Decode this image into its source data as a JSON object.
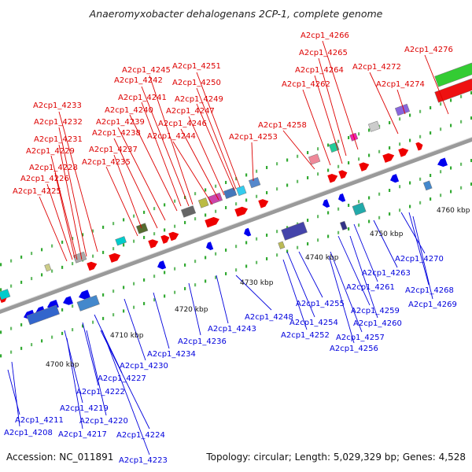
{
  "title": "Anaeromyxobacter dehalogenans 2CP-1, complete genome",
  "footer": {
    "accession": "Accession: NC_011891",
    "summary": "Topology: circular; Length: 5,029,329 bp; Genes: 4,528"
  },
  "colors": {
    "forward": "#ee0000",
    "reverse": "#0000ee",
    "backbone": "#999999",
    "dots": "#33aa33"
  },
  "ticks": [
    "4700 kbp",
    "4710 kbp",
    "4720 kbp",
    "4730 kbp",
    "4740 kbp",
    "4750 kbp",
    "4760 kbp"
  ],
  "top_labels": [
    "A2cp1_4266",
    "A2cp1_4276",
    "A2cp1_4265",
    "A2cp1_4251",
    "A2cp1_4245",
    "A2cp1_4264",
    "A2cp1_4272",
    "A2cp1_4242",
    "A2cp1_4250",
    "A2cp1_4262",
    "A2cp1_4274",
    "A2cp1_4241",
    "A2cp1_4249",
    "A2cp1_4233",
    "A2cp1_4240",
    "A2cp1_4247",
    "A2cp1_4232",
    "A2cp1_4239",
    "A2cp1_4246",
    "A2cp1_4258",
    "A2cp1_4238",
    "A2cp1_4244",
    "A2cp1_4231",
    "A2cp1_4253",
    "A2cp1_4229",
    "A2cp1_4237",
    "A2cp1_4235",
    "A2cp1_4228",
    "A2cp1_4226",
    "A2cp1_4225"
  ],
  "bottom_labels": [
    "A2cp1_4270",
    "A2cp1_4263",
    "A2cp1_4261",
    "A2cp1_4268",
    "A2cp1_4269",
    "A2cp1_4255",
    "A2cp1_4259",
    "A2cp1_4248",
    "A2cp1_4254",
    "A2cp1_4260",
    "A2cp1_4243",
    "A2cp1_4252",
    "A2cp1_4257",
    "A2cp1_4236",
    "A2cp1_4256",
    "A2cp1_4234",
    "A2cp1_4230",
    "A2cp1_4227",
    "A2cp1_4222",
    "A2cp1_4219",
    "A2cp1_4211",
    "A2cp1_4220",
    "A2cp1_4208",
    "A2cp1_4217",
    "A2cp1_4224",
    "A2cp1_4223"
  ]
}
